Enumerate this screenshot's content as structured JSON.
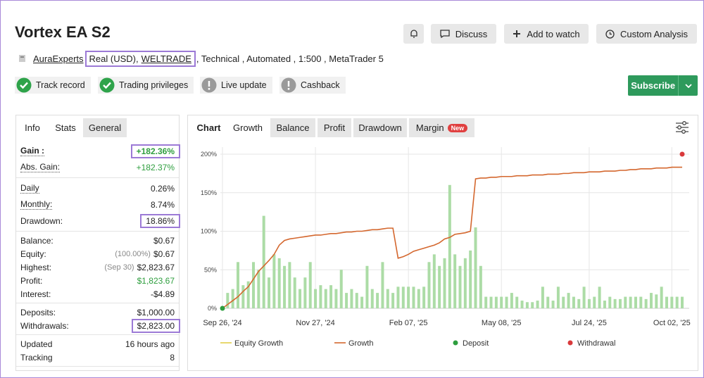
{
  "header": {
    "title": "Vortex EA S2",
    "buttons": [
      "Discuss",
      "Add to watch",
      "Custom Analysis"
    ]
  },
  "account": {
    "author": "AuraExperts",
    "type": "Real (USD),",
    "broker": "WELTRADE",
    "details": ", Technical , Automated , 1:500 , MetaTrader 5"
  },
  "badges": [
    {
      "label": "Track record",
      "status": "ok"
    },
    {
      "label": "Trading privileges",
      "status": "ok"
    },
    {
      "label": "Live update",
      "status": "warn"
    },
    {
      "label": "Cashback",
      "status": "warn"
    }
  ],
  "subscribe": "Subscribe",
  "stats_tabs": [
    "Info",
    "Stats",
    "General"
  ],
  "stats": {
    "groups": [
      [
        {
          "label": "Gain :",
          "value": "+182.36%",
          "color": "#2e9e3e",
          "outlined": true,
          "bold": true
        },
        {
          "label": "Abs. Gain:",
          "value": "+182.37%",
          "color": "#2e9e3e",
          "dotted": true
        }
      ],
      [
        {
          "label": "Daily",
          "value": "0.26%",
          "dotted": true
        },
        {
          "label": "Monthly:",
          "value": "8.74%",
          "dotted": true
        },
        {
          "label": "Drawdown:",
          "value": "18.86%",
          "outlined": true
        }
      ],
      [
        {
          "label": "Balance:",
          "value": "$0.67"
        },
        {
          "label": "Equity:",
          "note": "(100.00%)",
          "value": "$0.67"
        },
        {
          "label": "Highest:",
          "note": "(Sep 30)",
          "value": "$2,823.67"
        },
        {
          "label": "Profit:",
          "value": "$1,823.67",
          "color": "#2e9e3e"
        },
        {
          "label": "Interest:",
          "value": "-$4.89"
        }
      ],
      [
        {
          "label": "Deposits:",
          "value": "$1,000.00"
        },
        {
          "label": "Withdrawals:",
          "value": "$2,823.00",
          "outlined": true
        }
      ],
      [
        {
          "label": "Updated",
          "value": "16 hours ago"
        },
        {
          "label": "Tracking",
          "value": "8"
        }
      ]
    ]
  },
  "chart_tabs": [
    "Chart",
    "Growth",
    "Balance",
    "Profit",
    "Drawdown",
    "Margin"
  ],
  "new_badge": "New",
  "chart_data": {
    "type": "combo",
    "xlim": [
      0,
      89
    ],
    "ylim": [
      0,
      200
    ],
    "grid": true,
    "xticks": [
      {
        "value": 0,
        "label": "Sep 26, '24"
      },
      {
        "value": 18,
        "label": "Nov 27, '24"
      },
      {
        "value": 36,
        "label": "Feb 07, '25"
      },
      {
        "value": 54,
        "label": "May 08, '25"
      },
      {
        "value": 71,
        "label": "Jul 24, '25"
      },
      {
        "value": 87,
        "label": "Oct 02, '25"
      }
    ],
    "yticks": [
      {
        "value": 0,
        "label": "0%"
      },
      {
        "value": 50,
        "label": "50%"
      },
      {
        "value": 100,
        "label": "100%"
      },
      {
        "value": 150,
        "label": "150%"
      },
      {
        "value": 200,
        "label": "200%"
      }
    ],
    "daily_bars": {
      "type": "bar",
      "color": "#acdca6",
      "values": [
        0,
        20,
        25,
        60,
        30,
        35,
        60,
        50,
        120,
        40,
        70,
        65,
        55,
        60,
        40,
        25,
        40,
        60,
        25,
        30,
        25,
        30,
        25,
        50,
        20,
        25,
        20,
        15,
        55,
        25,
        20,
        60,
        25,
        20,
        28,
        28,
        28,
        28,
        25,
        28,
        60,
        70,
        55,
        65,
        160,
        70,
        55,
        65,
        75,
        105,
        55,
        15,
        15,
        15,
        15,
        15,
        20,
        15,
        10,
        8,
        8,
        10,
        28,
        15,
        10,
        28,
        15,
        20,
        15,
        12,
        28,
        12,
        15,
        28,
        10,
        15,
        12,
        12,
        15,
        15,
        15,
        15,
        12,
        20,
        18,
        28,
        15,
        15,
        15,
        15
      ]
    },
    "series": [
      {
        "name": "Equity Growth",
        "color": "#e3cf4a",
        "type": "line"
      },
      {
        "name": "Growth",
        "color": "#d4672e",
        "type": "line",
        "values": [
          0,
          5,
          10,
          15,
          22,
          28,
          38,
          48,
          55,
          62,
          70,
          82,
          88,
          90,
          91,
          92,
          93,
          94,
          95,
          95,
          96,
          97,
          97,
          98,
          99,
          99,
          100,
          100,
          101,
          102,
          102,
          103,
          104,
          104,
          65,
          67,
          70,
          74,
          76,
          78,
          80,
          82,
          85,
          90,
          92,
          96,
          97,
          98,
          100,
          168,
          169,
          169,
          170,
          170,
          171,
          171,
          171,
          172,
          172,
          172,
          173,
          173,
          173,
          174,
          174,
          174,
          175,
          175,
          176,
          176,
          176,
          177,
          177,
          177,
          178,
          178,
          178,
          179,
          179,
          180,
          180,
          181,
          181,
          181,
          182,
          182,
          182,
          183,
          183,
          183
        ]
      },
      {
        "name": "Deposit",
        "color": "#2e9e3e",
        "type": "scatter",
        "x": [
          0
        ],
        "values": [
          0
        ]
      },
      {
        "name": "Withdrawal",
        "color": "#d9393b",
        "type": "scatter",
        "x": [
          89
        ],
        "values": [
          200
        ]
      }
    ]
  }
}
